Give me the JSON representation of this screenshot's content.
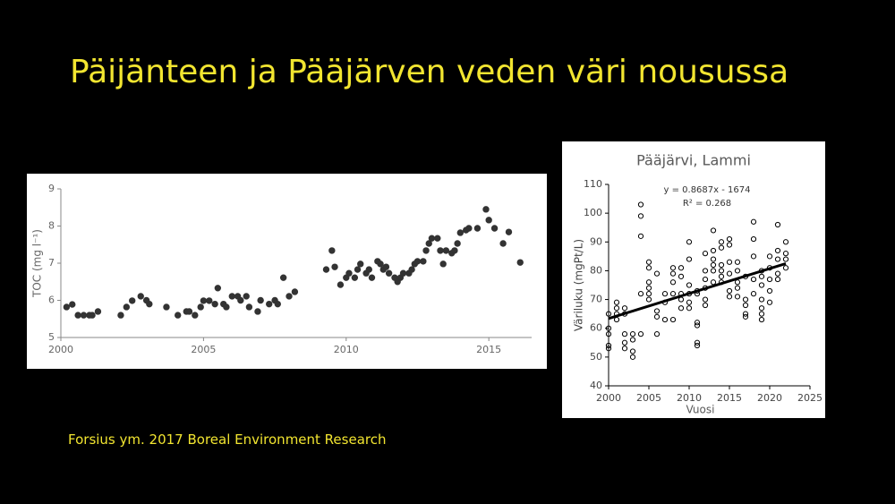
{
  "title": "Päijänteen ja Pääjärven veden väri nousussa",
  "source": "Forsius ym. 2017 Boreal Environment Research",
  "chart_data": [
    {
      "type": "scatter",
      "ylabel": "TOC (mg l⁻¹)",
      "xlim": [
        2000,
        2016.5
      ],
      "ylim": [
        5,
        9
      ],
      "xticks": [
        2000,
        2005,
        2010,
        2015
      ],
      "yticks": [
        5,
        6,
        7,
        8,
        9
      ],
      "grid": false,
      "color": "#333333",
      "marker_fill": true,
      "x": [
        2000.2,
        2000.4,
        2000.6,
        2000.8,
        2001.0,
        2001.1,
        2001.3,
        2002.1,
        2002.3,
        2002.5,
        2002.8,
        2003.0,
        2003.1,
        2003.7,
        2004.1,
        2004.4,
        2004.5,
        2004.7,
        2004.9,
        2005.0,
        2005.2,
        2005.4,
        2005.5,
        2005.7,
        2005.8,
        2006.0,
        2006.2,
        2006.3,
        2006.5,
        2006.6,
        2006.9,
        2007.0,
        2007.3,
        2007.5,
        2007.6,
        2007.8,
        2008.0,
        2008.2,
        2009.3,
        2009.5,
        2009.6,
        2009.8,
        2010.0,
        2010.1,
        2010.3,
        2010.4,
        2010.5,
        2010.7,
        2010.8,
        2010.9,
        2011.1,
        2011.2,
        2011.3,
        2011.4,
        2011.5,
        2011.7,
        2011.8,
        2011.9,
        2012.0,
        2012.2,
        2012.3,
        2012.4,
        2012.5,
        2012.7,
        2012.8,
        2012.9,
        2013.0,
        2013.2,
        2013.3,
        2013.4,
        2013.5,
        2013.7,
        2013.8,
        2013.9,
        2014.0,
        2014.2,
        2014.3,
        2014.6,
        2014.9,
        2015.0,
        2015.2,
        2015.5,
        2015.7,
        2016.1
      ],
      "values": [
        5.82,
        5.89,
        5.6,
        5.6,
        5.6,
        5.6,
        5.7,
        5.6,
        5.82,
        5.99,
        6.11,
        6.0,
        5.9,
        5.82,
        5.6,
        5.7,
        5.7,
        5.6,
        5.82,
        5.99,
        5.99,
        5.9,
        6.33,
        5.9,
        5.82,
        6.11,
        6.11,
        6.0,
        6.11,
        5.82,
        5.7,
        6.0,
        5.9,
        6.0,
        5.9,
        6.61,
        6.11,
        6.23,
        6.83,
        7.34,
        6.9,
        6.42,
        6.61,
        6.73,
        6.61,
        6.83,
        6.98,
        6.73,
        6.83,
        6.61,
        7.05,
        6.98,
        6.83,
        6.9,
        6.73,
        6.61,
        6.5,
        6.61,
        6.73,
        6.73,
        6.83,
        6.98,
        7.05,
        7.05,
        7.34,
        7.53,
        7.67,
        7.67,
        7.34,
        6.98,
        7.34,
        7.27,
        7.34,
        7.53,
        7.82,
        7.89,
        7.94,
        7.94,
        8.45,
        8.16,
        7.94,
        7.53,
        7.84,
        7.02
      ]
    },
    {
      "type": "scatter",
      "title": "Pääjärvi, Lammi",
      "xlabel": "Vuosi",
      "ylabel": "Väriluku (mgPt/L)",
      "annotations": [
        "y = 0.8687x - 1674",
        "R² = 0.268"
      ],
      "xlim": [
        2000,
        2025
      ],
      "ylim": [
        40,
        110
      ],
      "xticks": [
        2000,
        2005,
        2010,
        2015,
        2020,
        2025
      ],
      "yticks": [
        40,
        50,
        60,
        70,
        80,
        90,
        100,
        110
      ],
      "grid": false,
      "color": "#000000",
      "marker_fill": false,
      "x": [
        2000,
        2000,
        2000,
        2000,
        2000,
        2001,
        2001,
        2001,
        2001,
        2002,
        2002,
        2002,
        2002,
        2002,
        2003,
        2003,
        2003,
        2003,
        2004,
        2004,
        2004,
        2004,
        2004,
        2005,
        2005,
        2005,
        2005,
        2005,
        2005,
        2006,
        2006,
        2006,
        2006,
        2007,
        2007,
        2007,
        2008,
        2008,
        2008,
        2008,
        2008,
        2009,
        2009,
        2009,
        2009,
        2009,
        2010,
        2010,
        2010,
        2010,
        2010,
        2010,
        2011,
        2011,
        2011,
        2011,
        2011,
        2011,
        2012,
        2012,
        2012,
        2012,
        2012,
        2012,
        2013,
        2013,
        2013,
        2013,
        2013,
        2013,
        2014,
        2014,
        2014,
        2014,
        2014,
        2014,
        2015,
        2015,
        2015,
        2015,
        2015,
        2015,
        2016,
        2016,
        2016,
        2016,
        2016,
        2017,
        2017,
        2017,
        2017,
        2017,
        2018,
        2018,
        2018,
        2018,
        2018,
        2019,
        2019,
        2019,
        2019,
        2019,
        2019,
        2019,
        2020,
        2020,
        2020,
        2020,
        2020,
        2021,
        2021,
        2021,
        2021,
        2021,
        2022,
        2022,
        2022,
        2022
      ],
      "values": [
        65,
        60,
        58,
        54,
        53,
        69,
        67,
        65,
        63,
        67,
        65,
        58,
        55,
        53,
        58,
        56,
        52,
        50,
        103,
        99,
        92,
        72,
        58,
        83,
        81,
        76,
        74,
        72,
        70,
        79,
        66,
        64,
        58,
        72,
        69,
        63,
        81,
        79,
        76,
        72,
        63,
        81,
        78,
        72,
        70,
        67,
        90,
        84,
        75,
        72,
        69,
        67,
        73,
        72,
        62,
        61,
        55,
        54,
        86,
        80,
        77,
        74,
        70,
        68,
        94,
        87,
        84,
        82,
        80,
        76,
        90,
        88,
        82,
        80,
        78,
        76,
        91,
        89,
        83,
        79,
        73,
        71,
        83,
        80,
        76,
        74,
        71,
        78,
        70,
        68,
        65,
        64,
        97,
        91,
        85,
        77,
        72,
        80,
        78,
        75,
        70,
        67,
        65,
        63,
        85,
        81,
        77,
        73,
        69,
        96,
        87,
        84,
        79,
        77,
        90,
        86,
        84,
        81
      ],
      "trendline": {
        "x": [
          2000,
          2022
        ],
        "y": [
          63.4,
          82.5
        ]
      }
    }
  ]
}
